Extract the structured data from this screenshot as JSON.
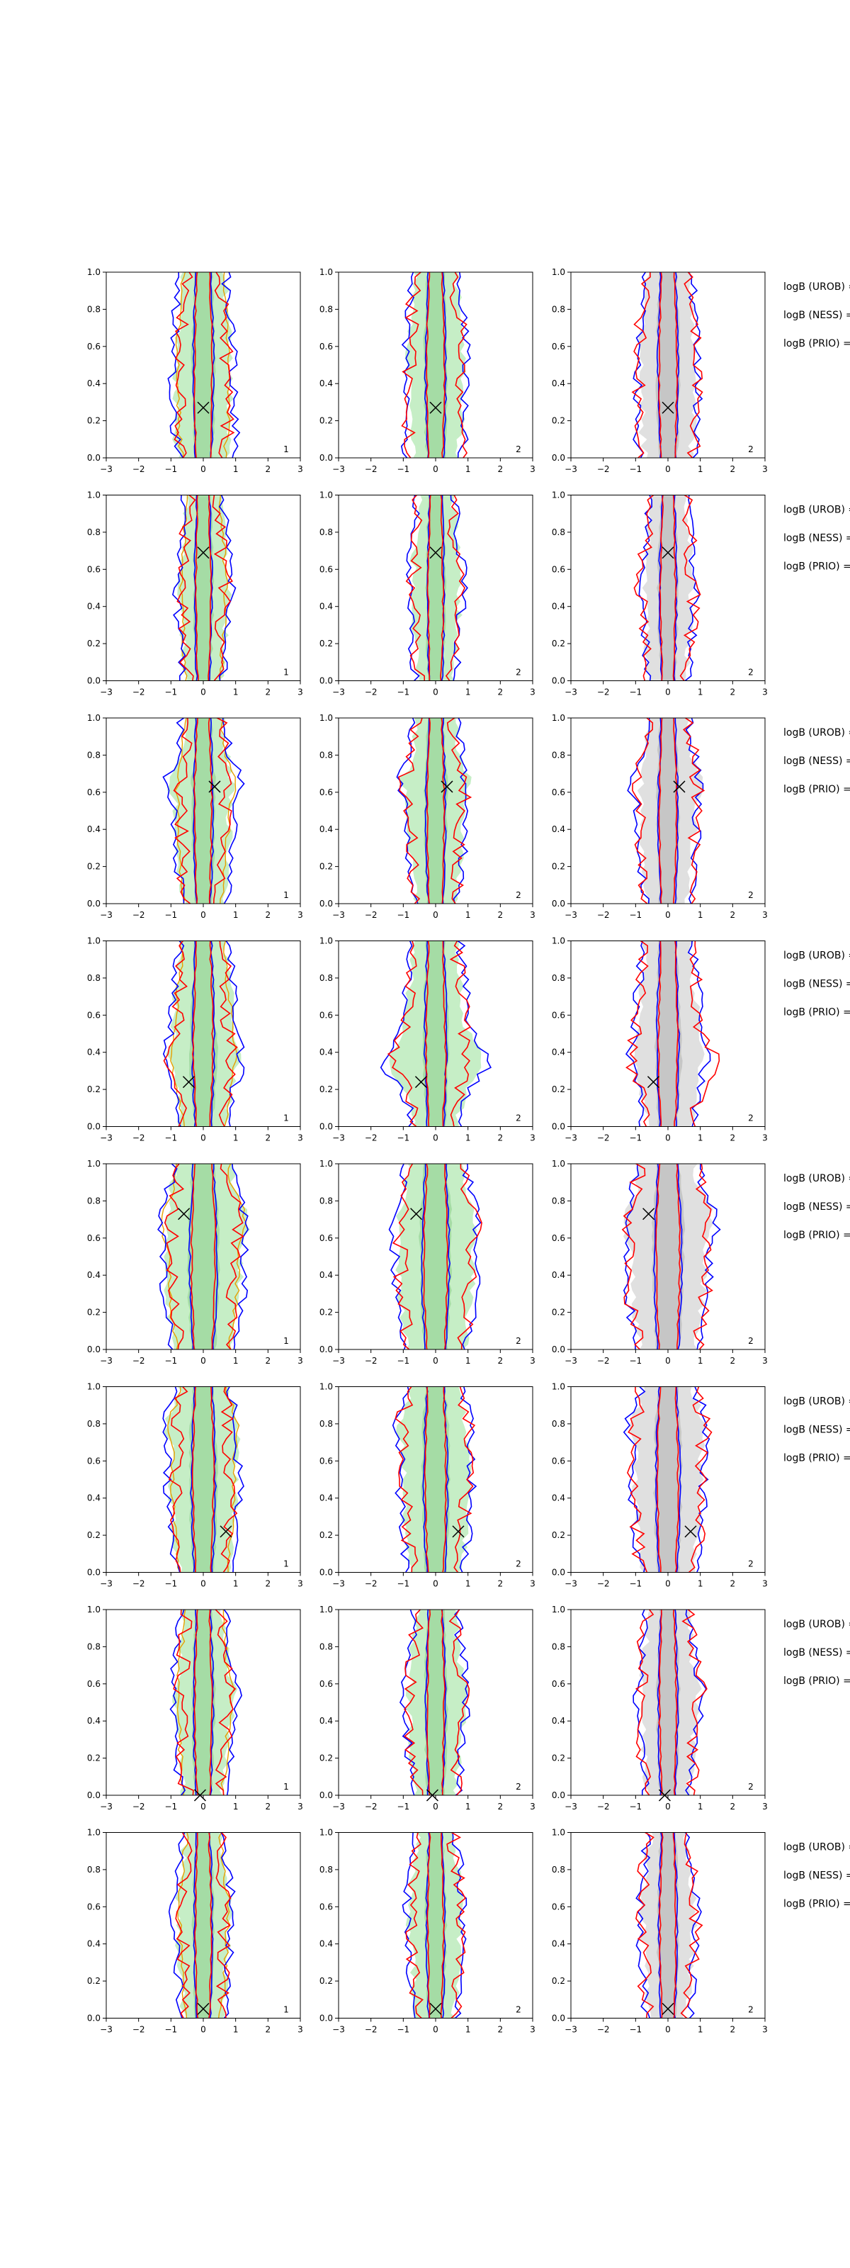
{
  "chart_data": {
    "type": "contour",
    "rows": 8,
    "cols": 3,
    "xlim": [
      -3,
      3
    ],
    "ylim": [
      0,
      1.0
    ],
    "xticks": [
      "−3",
      "−2",
      "−1",
      "0",
      "1",
      "2",
      "3"
    ],
    "yticks": [
      "0.0",
      "0.2",
      "0.4",
      "0.6",
      "0.8",
      "1.0"
    ],
    "colors": {
      "blue": "#0000ff",
      "red": "#ff0000",
      "green_fill": "#b8eab8",
      "green_fill_dark": "#8fd18f",
      "grey_fill": "#d8d8d8",
      "grey_fill_dark": "#b4b4b4",
      "orange": "#e6a000"
    },
    "column_labels": [
      "1",
      "2",
      "2"
    ],
    "logb_lines": [
      "logB (UROB) =",
      "logB (NESS) =",
      "logB (PRIO) ="
    ],
    "panels": [
      {
        "marker": [
          0.0,
          0.27
        ],
        "w1": 0.9,
        "w2": 0.35,
        "bulge": 0.2,
        "bulgeY": 0.1,
        "seed": 1
      },
      {
        "marker": [
          0.0,
          0.69
        ],
        "w1": 0.75,
        "w2": 0.25,
        "bulge": 0.1,
        "bulgeY": 0.5,
        "seed": 2
      },
      {
        "marker": [
          0.35,
          0.63
        ],
        "w1": 0.85,
        "w2": 0.35,
        "bulge": 0.25,
        "bulgeY": 0.65,
        "seed": 3
      },
      {
        "marker": [
          -0.45,
          0.24
        ],
        "w1": 0.95,
        "w2": 0.35,
        "bulge": 0.6,
        "bulgeY": 0.35,
        "seed": 4
      },
      {
        "marker": [
          -0.6,
          0.73
        ],
        "w1": 1.2,
        "w2": 0.45,
        "bulge": 0.3,
        "bulgeY": 0.7,
        "seed": 5
      },
      {
        "marker": [
          0.7,
          0.22
        ],
        "w1": 1.05,
        "w2": 0.4,
        "bulge": 0.25,
        "bulgeY": 0.8,
        "seed": 6
      },
      {
        "marker": [
          -0.1,
          0.0
        ],
        "w1": 0.85,
        "w2": 0.35,
        "bulge": 0.15,
        "bulgeY": 0.55,
        "seed": 7
      },
      {
        "marker": [
          0.0,
          0.05
        ],
        "w1": 0.8,
        "w2": 0.35,
        "bulge": 0.1,
        "bulgeY": 0.6,
        "seed": 8
      }
    ]
  }
}
